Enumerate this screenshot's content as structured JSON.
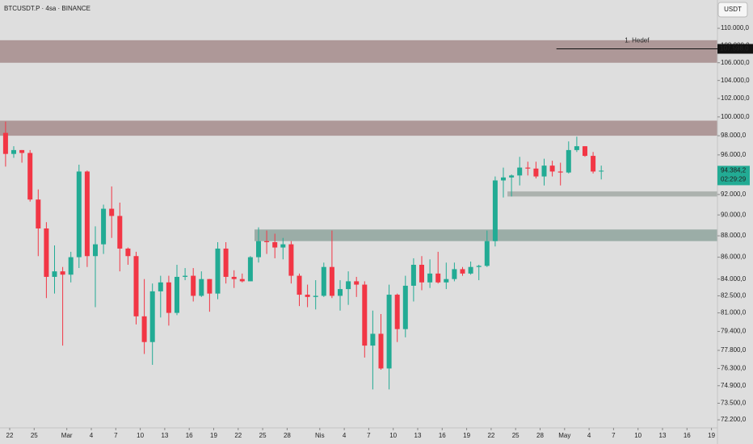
{
  "chart_data": {
    "type": "candlestick",
    "title": "BTCUSDT.P · 4sa · BINANCE",
    "currency_button": "USDT",
    "log_scale": true,
    "grid": false,
    "up_color": "#22ab94",
    "down_color": "#f23645",
    "x": [
      "02-21",
      "02-22",
      "02-23",
      "02-24",
      "02-25",
      "02-26",
      "02-27",
      "02-28",
      "03-01",
      "03-02",
      "03-03",
      "03-04",
      "03-05",
      "03-06",
      "03-07",
      "03-08",
      "03-09",
      "03-10",
      "03-11",
      "03-12",
      "03-13",
      "03-14",
      "03-15",
      "03-16",
      "03-17",
      "03-18",
      "03-19",
      "03-20",
      "03-21",
      "03-22",
      "03-23",
      "03-24",
      "03-25",
      "03-26",
      "03-27",
      "03-28",
      "03-29",
      "03-30",
      "03-31",
      "04-01",
      "04-02",
      "04-03",
      "04-04",
      "04-05",
      "04-06",
      "04-07",
      "04-08",
      "04-09",
      "04-10",
      "04-11",
      "04-12",
      "04-13",
      "04-14",
      "04-15",
      "04-16",
      "04-17",
      "04-18",
      "04-19",
      "04-20",
      "04-21",
      "04-22",
      "04-23",
      "04-24",
      "04-25",
      "04-26",
      "04-27",
      "04-28",
      "04-29",
      "04-30",
      "05-01",
      "05-02",
      "05-03",
      "05-04",
      "05-05"
    ],
    "open": [
      98300,
      96100,
      96500,
      96200,
      91500,
      88700,
      84200,
      84700,
      84400,
      86000,
      94300,
      86100,
      87200,
      90600,
      89900,
      86800,
      86100,
      80700,
      78500,
      82900,
      83700,
      81000,
      84200,
      84300,
      82500,
      84000,
      82700,
      86800,
      84200,
      84000,
      83800,
      86000,
      87500,
      87400,
      86900,
      87200,
      84300,
      82600,
      82400,
      82500,
      85100,
      82500,
      83100,
      83800,
      83500,
      78200,
      79200,
      76300,
      82600,
      79600,
      83400,
      85300,
      83700,
      84500,
      83700,
      84000,
      84900,
      84500,
      85100,
      85200,
      87500,
      93400,
      93700,
      93900,
      94700,
      94600,
      93800,
      94900,
      94300,
      94200,
      96500,
      96900,
      95900,
      94300
    ],
    "high": [
      99500,
      96900,
      96500,
      96500,
      92500,
      89300,
      87100,
      85100,
      86500,
      95000,
      94400,
      88900,
      91000,
      92800,
      91200,
      86900,
      86500,
      84000,
      83600,
      84300,
      84300,
      85300,
      85000,
      85000,
      84700,
      84000,
      87400,
      87400,
      84800,
      84500,
      86100,
      88800,
      88500,
      88200,
      87800,
      87500,
      84500,
      83500,
      83900,
      85500,
      88500,
      83900,
      84700,
      84200,
      83800,
      81200,
      80900,
      83500,
      82700,
      84300,
      85900,
      86100,
      85800,
      86500,
      85500,
      85500,
      85100,
      85600,
      85300,
      88500,
      93800,
      94700,
      94000,
      95800,
      95300,
      95300,
      95600,
      95400,
      95200,
      97400,
      97900,
      96900,
      96300,
      94900
    ],
    "low": [
      94800,
      95700,
      95200,
      91300,
      86100,
      82300,
      82700,
      78200,
      83700,
      85000,
      85100,
      81500,
      86300,
      87800,
      84700,
      85300,
      80000,
      77500,
      76600,
      80600,
      79900,
      80800,
      83900,
      82000,
      82400,
      81100,
      82200,
      83600,
      83200,
      83700,
      83800,
      85500,
      86300,
      85900,
      85800,
      83600,
      81600,
      81500,
      81300,
      82400,
      82300,
      81200,
      81700,
      82400,
      77200,
      74600,
      76200,
      74600,
      78500,
      78900,
      82000,
      83000,
      83200,
      83600,
      83100,
      83800,
      84300,
      84400,
      83900,
      85100,
      87000,
      91700,
      91800,
      92900,
      93900,
      93600,
      92900,
      93800,
      92900,
      94100,
      96300,
      95800,
      94100,
      93500
    ],
    "close": [
      96100,
      96500,
      96200,
      91500,
      88700,
      84200,
      84700,
      84400,
      86000,
      94300,
      86100,
      87200,
      90600,
      89900,
      86800,
      86100,
      80700,
      78500,
      82900,
      83700,
      81000,
      84200,
      84300,
      82500,
      84000,
      82700,
      86800,
      84200,
      84000,
      83800,
      86000,
      87500,
      87400,
      86900,
      87200,
      84300,
      82600,
      82400,
      82500,
      85100,
      82500,
      83100,
      83800,
      83500,
      78200,
      79200,
      76300,
      82600,
      79600,
      83400,
      85300,
      83700,
      84500,
      83700,
      84000,
      84900,
      84500,
      85100,
      85200,
      87500,
      93400,
      93700,
      93900,
      94700,
      94600,
      93800,
      94900,
      94300,
      94200,
      96500,
      96900,
      95900,
      94300,
      94384.2
    ],
    "ylim": [
      71580,
      113400
    ],
    "yticks": [
      {
        "value": 110000,
        "label": "110.000,0"
      },
      {
        "value": 108000,
        "label": "108.000,0"
      },
      {
        "value": 106000,
        "label": "106.000,0"
      },
      {
        "value": 104000,
        "label": "104.000,0"
      },
      {
        "value": 102000,
        "label": "102.000,0"
      },
      {
        "value": 100000,
        "label": "100.000,0"
      },
      {
        "value": 98000,
        "label": "98.000,0"
      },
      {
        "value": 96000,
        "label": "96.000,0"
      },
      {
        "value": 92000,
        "label": "92.000,0"
      },
      {
        "value": 90000,
        "label": "90.000,0"
      },
      {
        "value": 88000,
        "label": "88.000,0"
      },
      {
        "value": 86000,
        "label": "86.000,0"
      },
      {
        "value": 84000,
        "label": "84.000,0"
      },
      {
        "value": 82500,
        "label": "82.500,0"
      },
      {
        "value": 81000,
        "label": "81.000,0"
      },
      {
        "value": 79400,
        "label": "79.400,0"
      },
      {
        "value": 77800,
        "label": "77.800,0"
      },
      {
        "value": 76300,
        "label": "76.300,0"
      },
      {
        "value": 74900,
        "label": "74.900,0"
      },
      {
        "value": 73500,
        "label": "73.500,0"
      },
      {
        "value": 72200,
        "label": "72.200,0"
      }
    ],
    "xticks": [
      {
        "value": "02-22",
        "label": "22"
      },
      {
        "value": "02-25",
        "label": "25"
      },
      {
        "value": "03-01",
        "label": "Mar"
      },
      {
        "value": "03-04",
        "label": "4"
      },
      {
        "value": "03-07",
        "label": "7"
      },
      {
        "value": "03-10",
        "label": "10"
      },
      {
        "value": "03-13",
        "label": "13"
      },
      {
        "value": "03-16",
        "label": "16"
      },
      {
        "value": "03-19",
        "label": "19"
      },
      {
        "value": "03-22",
        "label": "22"
      },
      {
        "value": "03-25",
        "label": "25"
      },
      {
        "value": "03-28",
        "label": "28"
      },
      {
        "value": "04-01",
        "label": "Nis"
      },
      {
        "value": "04-04",
        "label": "4"
      },
      {
        "value": "04-07",
        "label": "7"
      },
      {
        "value": "04-10",
        "label": "10"
      },
      {
        "value": "04-13",
        "label": "13"
      },
      {
        "value": "04-16",
        "label": "16"
      },
      {
        "value": "04-19",
        "label": "19"
      },
      {
        "value": "04-22",
        "label": "22"
      },
      {
        "value": "04-25",
        "label": "25"
      },
      {
        "value": "04-28",
        "label": "28"
      },
      {
        "value": "05-01",
        "label": "May"
      },
      {
        "value": "05-04",
        "label": "4"
      },
      {
        "value": "05-07",
        "label": "7"
      },
      {
        "value": "05-10",
        "label": "10"
      },
      {
        "value": "05-13",
        "label": "13"
      },
      {
        "value": "05-16",
        "label": "16"
      },
      {
        "value": "05-19",
        "label": "19"
      }
    ],
    "zones": [
      {
        "low": 106000,
        "high": 108600,
        "color": "#a68c8c"
      },
      {
        "low": 98000,
        "high": 99600,
        "color": "#a68c8c"
      },
      {
        "low": 87500,
        "high": 88600,
        "from": "03-24",
        "color": "#8fa59d"
      },
      {
        "low": 91800,
        "high": 92300,
        "from": "04-24",
        "color": "#a3aaa6"
      }
    ],
    "target": {
      "label": "1. Hedef",
      "value": 107598,
      "value_label": "107.598,0",
      "from": "04-30"
    },
    "last_price": {
      "value": 94384.2,
      "value_label": "94.384,2",
      "countdown": "02:29:29"
    }
  }
}
